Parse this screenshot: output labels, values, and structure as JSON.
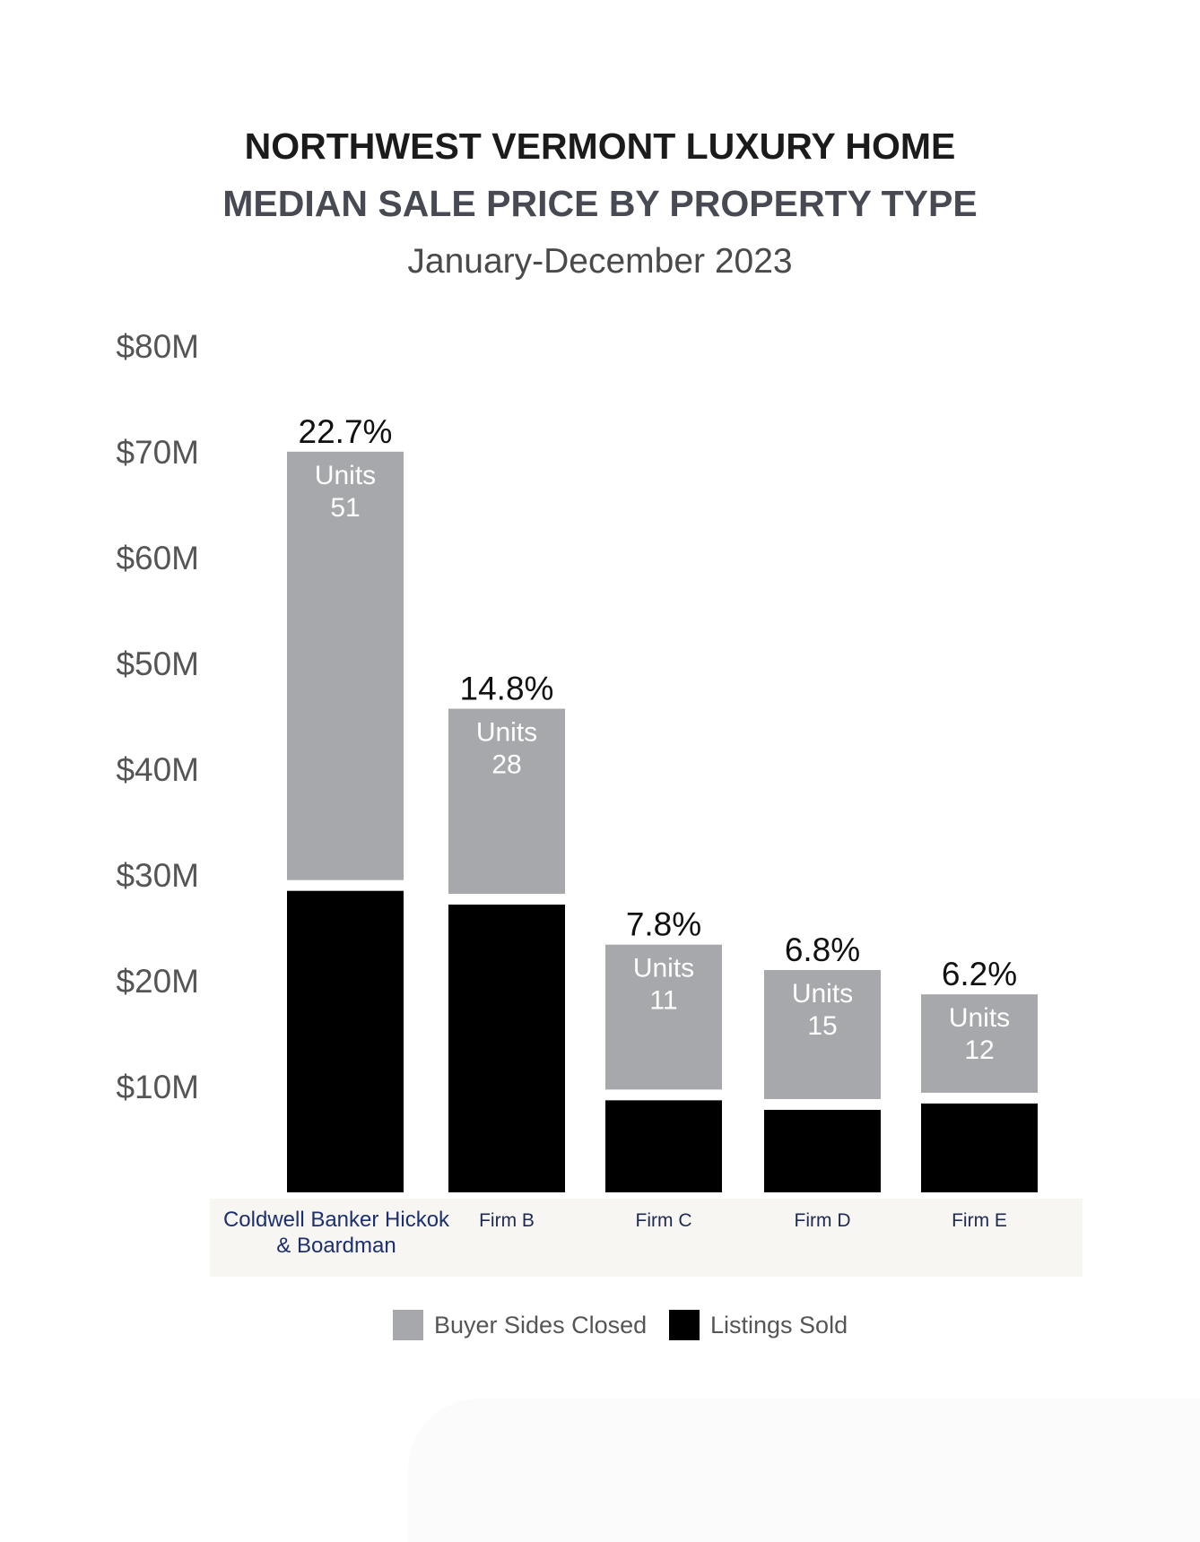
{
  "chart_data": {
    "type": "bar",
    "stacked": true,
    "title": "NORTHWEST VERMONT LUXURY HOME",
    "subtitle": "MEDIAN SALE PRICE BY PROPERTY TYPE",
    "period": "January-December 2023",
    "ylim": [
      0,
      80
    ],
    "yticks": [
      {
        "value": 80,
        "label": "$80M"
      },
      {
        "value": 70,
        "label": "$70M"
      },
      {
        "value": 60,
        "label": "$60M"
      },
      {
        "value": 50,
        "label": "$50M"
      },
      {
        "value": 40,
        "label": "$40M"
      },
      {
        "value": 30,
        "label": "$30M"
      },
      {
        "value": 20,
        "label": "$20M"
      },
      {
        "value": 10,
        "label": "$10M"
      }
    ],
    "categories": [
      "Coldwell Banker Hickok & Boardman",
      "Firm B",
      "Firm C",
      "Firm D",
      "Firm E"
    ],
    "category_lines": [
      [
        "Coldwell Banker Hickok",
        "& Boardman"
      ],
      [
        "Firm B"
      ],
      [
        "Firm C"
      ],
      [
        "Firm D"
      ],
      [
        "Firm E"
      ]
    ],
    "series": [
      {
        "name": "Listings Sold",
        "color": "#000000",
        "values": [
          28.5,
          27.2,
          8.7,
          7.8,
          8.4
        ]
      },
      {
        "name": "Buyer Sides Closed",
        "color": "#a7a8ab",
        "values": [
          40.5,
          17.5,
          13.7,
          12.2,
          9.3
        ]
      }
    ],
    "share_labels": [
      "22.7%",
      "14.8%",
      "7.8%",
      "6.8%",
      "6.2%"
    ],
    "units_label": "Units",
    "units": [
      "51",
      "28",
      "11",
      "15",
      "12"
    ],
    "highlight_color": "#1c2f6e",
    "label_band_color": "#f7f6f2",
    "grid": false,
    "legend_position": "bottom"
  },
  "legend": {
    "buyer_label": "Buyer Sides Closed",
    "listings_label": "Listings Sold"
  }
}
